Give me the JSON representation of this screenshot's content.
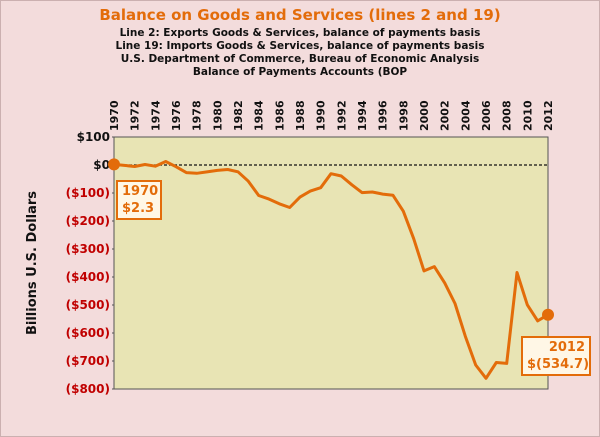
{
  "chart_data": {
    "type": "line",
    "title": "Balance on Goods and Services (lines 2 and 19)",
    "subtitle_lines": [
      "Line 2:  Exports Goods & Services, balance of payments basis",
      "Line 19: Imports Goods & Services, balance of payments basis",
      "U.S. Department of Commerce, Bureau of Economic Analysis",
      "Balance of Payments Accounts (BOP"
    ],
    "ylabel": "Billions U.S. Dollars",
    "xlabel": "",
    "ylim": [
      -800,
      100
    ],
    "xlim": [
      1970,
      2012
    ],
    "y_ticks": [
      100,
      0,
      -100,
      -200,
      -300,
      -400,
      -500,
      -600,
      -700,
      -800
    ],
    "y_tick_labels": [
      "$100",
      "$0",
      "($100)",
      "($200)",
      "($300)",
      "($400)",
      "($500)",
      "($600)",
      "($700)",
      "($800)"
    ],
    "x_ticks": [
      1970,
      1972,
      1974,
      1976,
      1978,
      1980,
      1982,
      1984,
      1986,
      1988,
      1990,
      1992,
      1994,
      1996,
      1998,
      2000,
      2002,
      2004,
      2006,
      2008,
      2010,
      2012
    ],
    "x_tick_labels": [
      "1970",
      "1972",
      "1974",
      "1976",
      "1978",
      "1980",
      "1982",
      "1984",
      "1986",
      "1988",
      "1990",
      "1992",
      "1994",
      "1996",
      "1998",
      "2000",
      "2002",
      "2004",
      "2006",
      "2008",
      "2010",
      "2012"
    ],
    "grid": false,
    "series": [
      {
        "x": [
          1970,
          1971,
          1972,
          1973,
          1974,
          1975,
          1976,
          1977,
          1978,
          1979,
          1980,
          1981,
          1982,
          1983,
          1984,
          1985,
          1986,
          1987,
          1988,
          1989,
          1990,
          1991,
          1992,
          1993,
          1994,
          1995,
          1996,
          1997,
          1998,
          1999,
          2000,
          2001,
          2002,
          2003,
          2004,
          2005,
          2006,
          2007,
          2008,
          2009,
          2010,
          2011,
          2012
        ],
        "values": [
          2.3,
          -1.3,
          -5.4,
          1.9,
          -4.3,
          12.4,
          -6.1,
          -27.2,
          -29.8,
          -24.6,
          -19.4,
          -16.2,
          -24.2,
          -57.8,
          -109.1,
          -121.9,
          -138.5,
          -151.7,
          -114.6,
          -93.1,
          -80.9,
          -31.1,
          -39.2,
          -70.3,
          -98.5,
          -96.4,
          -104.1,
          -108.3,
          -164.9,
          -263.2,
          -378.3,
          -362.7,
          -421.1,
          -494.8,
          -611.3,
          -714.2,
          -761.7,
          -705.4,
          -708.7,
          -383.8,
          -499.4,
          -556.8,
          -534.7
        ],
        "color": "#e36c0a"
      }
    ],
    "annotations": [
      {
        "year_label": "1970",
        "value_label": "$2.3",
        "x": 1970,
        "y": 2.3
      },
      {
        "year_label": "2012",
        "value_label": "$(534.7)",
        "x": 2012,
        "y": -534.7
      }
    ],
    "colors": {
      "plot_bg": "#e8e4b4",
      "line": "#e36c0a",
      "negative_label": "#c00000",
      "page_bg": "#f3dcdc"
    }
  }
}
